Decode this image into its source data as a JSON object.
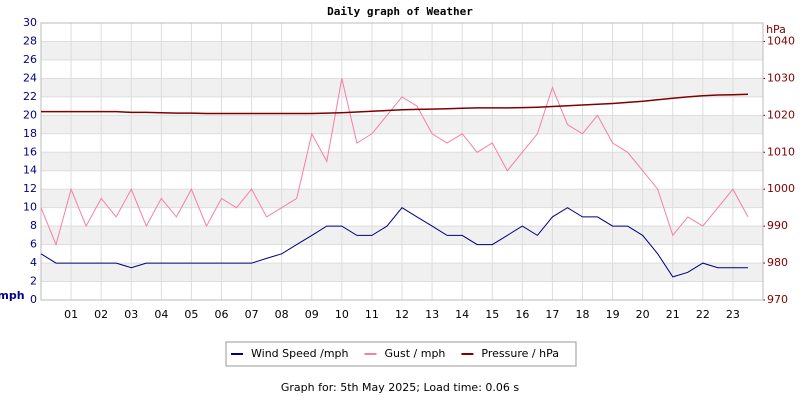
{
  "chart_data": {
    "type": "line",
    "title": "Daily graph of Weather",
    "ylabel": "mph",
    "y2label": "hPa",
    "x": [
      0,
      0.5,
      1,
      1.5,
      2,
      2.5,
      3,
      3.5,
      4,
      4.5,
      5,
      5.5,
      6,
      6.5,
      7,
      7.5,
      8,
      8.5,
      9,
      9.5,
      10,
      10.5,
      11,
      11.5,
      12,
      12.5,
      13,
      13.5,
      14,
      14.5,
      15,
      15.5,
      16,
      16.5,
      17,
      17.5,
      18,
      18.5,
      19,
      19.5,
      20,
      20.5,
      21,
      21.5,
      22,
      22.5,
      23,
      23.5
    ],
    "series": [
      {
        "name": "Wind Speed /mph",
        "color": "#000080",
        "values": [
          5,
          4,
          4,
          4,
          4,
          4,
          3.5,
          4,
          4,
          4,
          4,
          4,
          4,
          4,
          4,
          4.5,
          5,
          6,
          7,
          8,
          8,
          7,
          7,
          8,
          10,
          9,
          8,
          7,
          7,
          6,
          6,
          7,
          8,
          7,
          9,
          10,
          9,
          9,
          8,
          8,
          7,
          5,
          2.5,
          3,
          4,
          3.5,
          3.5,
          3.5
        ]
      },
      {
        "name": "Gust / mph",
        "color": "#f77fa5",
        "values": [
          10,
          6,
          12,
          8,
          11,
          9,
          12,
          8,
          11,
          9,
          12,
          8,
          11,
          10,
          12,
          9,
          10,
          11,
          18,
          15,
          24,
          17,
          18,
          20,
          22,
          21,
          18,
          17,
          18,
          16,
          17,
          14,
          16,
          18,
          23,
          19,
          18,
          20,
          17,
          16,
          14,
          12,
          7,
          9,
          8,
          10,
          12,
          9
        ]
      },
      {
        "name": "Pressure / hPa",
        "color": "#800000",
        "axis": "y2",
        "values": [
          1021,
          1021,
          1021,
          1021,
          1021,
          1021,
          1020.8,
          1020.8,
          1020.7,
          1020.6,
          1020.6,
          1020.5,
          1020.5,
          1020.5,
          1020.5,
          1020.5,
          1020.5,
          1020.5,
          1020.5,
          1020.6,
          1020.7,
          1020.9,
          1021.1,
          1021.3,
          1021.5,
          1021.6,
          1021.7,
          1021.8,
          1021.9,
          1022,
          1022,
          1022,
          1022.1,
          1022.2,
          1022.4,
          1022.6,
          1022.8,
          1023,
          1023.2,
          1023.5,
          1023.8,
          1024.2,
          1024.6,
          1025,
          1025.3,
          1025.5,
          1025.6,
          1025.7
        ]
      }
    ],
    "xlim": [
      0,
      24
    ],
    "xticks": [
      {
        "value": 1,
        "label": "01"
      },
      {
        "value": 2,
        "label": "02"
      },
      {
        "value": 3,
        "label": "03"
      },
      {
        "value": 4,
        "label": "04"
      },
      {
        "value": 5,
        "label": "05"
      },
      {
        "value": 6,
        "label": "06"
      },
      {
        "value": 7,
        "label": "07"
      },
      {
        "value": 8,
        "label": "08"
      },
      {
        "value": 9,
        "label": "09"
      },
      10,
      11,
      12,
      13,
      14,
      15,
      16,
      17,
      18,
      19,
      20,
      21,
      22,
      23
    ],
    "ylim": [
      0,
      30
    ],
    "yticks": [
      0,
      2,
      4,
      6,
      8,
      10,
      12,
      14,
      16,
      18,
      20,
      22,
      24,
      26,
      28,
      30
    ],
    "y2lim": [
      970,
      1045
    ],
    "y2ticks": [
      970,
      980,
      990,
      1000,
      1010,
      1020,
      1030,
      1040
    ],
    "grid": true,
    "legend": "bottom",
    "footer": "Graph for: 5th May 2025; Load time: 0.06 s"
  }
}
